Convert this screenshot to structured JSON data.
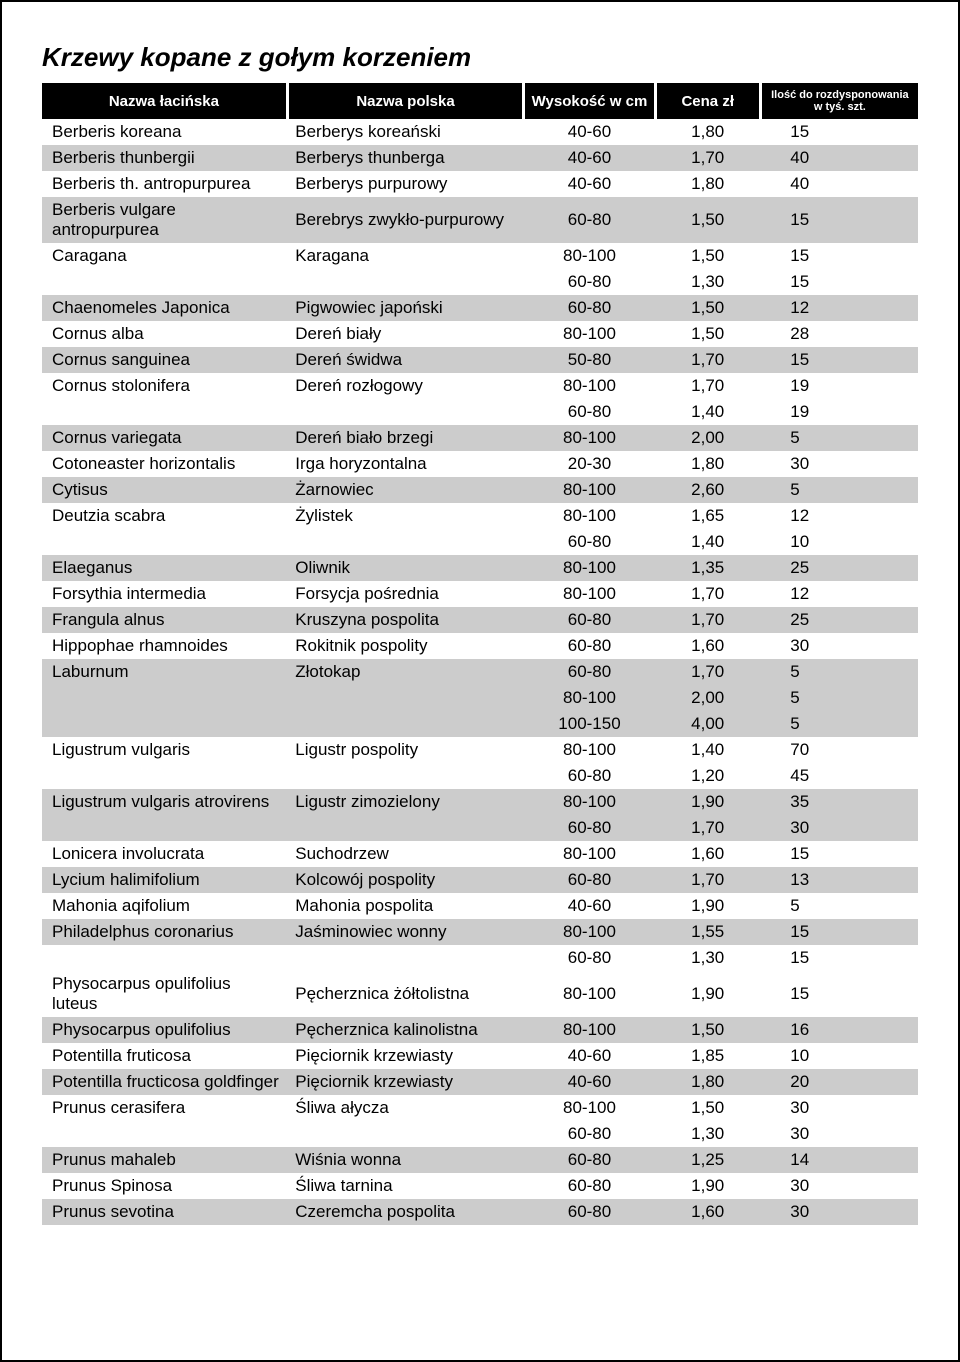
{
  "title": "Krzewy kopane z gołym korzeniem",
  "headers": {
    "latin": "Nazwa łacińska",
    "polish": "Nazwa polska",
    "height": "Wysokość w cm",
    "price": "Cena zł",
    "qty_line1": "Ilość do rozdysponowania",
    "qty_line2": "w tyś. szt."
  },
  "rows": [
    {
      "latin": "Berberis koreana",
      "polish": "Berberys koreański",
      "height": "40-60",
      "price": "1,80",
      "qty": "15",
      "shade": "white"
    },
    {
      "latin": "Berberis thunbergii",
      "polish": "Berberys thunberga",
      "height": "40-60",
      "price": "1,70",
      "qty": "40",
      "shade": "shaded"
    },
    {
      "latin": "Berberis th. antropurpurea",
      "polish": "Berberys purpurowy",
      "height": "40-60",
      "price": "1,80",
      "qty": "40",
      "shade": "white"
    },
    {
      "latin": "Berberis vulgare antropurpurea",
      "polish": "Berebrys zwykło-purpurowy",
      "height": "60-80",
      "price": "1,50",
      "qty": "15",
      "shade": "shaded"
    },
    {
      "latin": "Caragana",
      "polish": "Karagana",
      "height": "80-100",
      "price": "1,50",
      "qty": "15",
      "shade": "white"
    },
    {
      "latin": "",
      "polish": "",
      "height": "60-80",
      "price": "1,30",
      "qty": "15",
      "shade": "white"
    },
    {
      "latin": "Chaenomeles Japonica",
      "polish": "Pigwowiec japoński",
      "height": "60-80",
      "price": "1,50",
      "qty": "12",
      "shade": "shaded"
    },
    {
      "latin": "Cornus alba",
      "polish": "Dereń biały",
      "height": "80-100",
      "price": "1,50",
      "qty": "28",
      "shade": "white"
    },
    {
      "latin": "Cornus sanguinea",
      "polish": "Dereń świdwa",
      "height": "50-80",
      "price": "1,70",
      "qty": "15",
      "shade": "shaded"
    },
    {
      "latin": "Cornus stolonifera",
      "polish": "Dereń rozłogowy",
      "height": "80-100",
      "price": "1,70",
      "qty": "19",
      "shade": "white"
    },
    {
      "latin": "",
      "polish": "",
      "height": "60-80",
      "price": "1,40",
      "qty": "19",
      "shade": "white"
    },
    {
      "latin": "Cornus variegata",
      "polish": "Dereń biało brzegi",
      "height": "80-100",
      "price": "2,00",
      "qty": "5",
      "shade": "shaded"
    },
    {
      "latin": "Cotoneaster horizontalis",
      "polish": "Irga horyzontalna",
      "height": "20-30",
      "price": "1,80",
      "qty": "30",
      "shade": "white"
    },
    {
      "latin": "Cytisus",
      "polish": "Żarnowiec",
      "height": "80-100",
      "price": "2,60",
      "qty": "5",
      "shade": "shaded"
    },
    {
      "latin": "Deutzia scabra",
      "polish": "Żylistek",
      "height": "80-100",
      "price": "1,65",
      "qty": "12",
      "shade": "white"
    },
    {
      "latin": "",
      "polish": "",
      "height": "60-80",
      "price": "1,40",
      "qty": "10",
      "shade": "white"
    },
    {
      "latin": "Elaeganus",
      "polish": "Oliwnik",
      "height": "80-100",
      "price": "1,35",
      "qty": "25",
      "shade": "shaded"
    },
    {
      "latin": "Forsythia intermedia",
      "polish": "Forsycja pośrednia",
      "height": "80-100",
      "price": "1,70",
      "qty": "12",
      "shade": "white"
    },
    {
      "latin": "Frangula alnus",
      "polish": "Kruszyna pospolita",
      "height": "60-80",
      "price": "1,70",
      "qty": "25",
      "shade": "shaded"
    },
    {
      "latin": "Hippophae rhamnoides",
      "polish": "Rokitnik pospolity",
      "height": "60-80",
      "price": "1,60",
      "qty": "30",
      "shade": "white"
    },
    {
      "latin": "Laburnum",
      "polish": "Złotokap",
      "height": "60-80",
      "price": "1,70",
      "qty": "5",
      "shade": "shaded"
    },
    {
      "latin": "",
      "polish": "",
      "height": "80-100",
      "price": "2,00",
      "qty": "5",
      "shade": "shaded"
    },
    {
      "latin": "",
      "polish": "",
      "height": "100-150",
      "price": "4,00",
      "qty": "5",
      "shade": "shaded"
    },
    {
      "latin": "Ligustrum vulgaris",
      "polish": "Ligustr pospolity",
      "height": "80-100",
      "price": "1,40",
      "qty": "70",
      "shade": "white"
    },
    {
      "latin": "",
      "polish": "",
      "height": "60-80",
      "price": "1,20",
      "qty": "45",
      "shade": "white"
    },
    {
      "latin": "Ligustrum vulgaris atrovirens",
      "polish": "Ligustr zimozielony",
      "height": "80-100",
      "price": "1,90",
      "qty": "35",
      "shade": "shaded"
    },
    {
      "latin": "",
      "polish": "",
      "height": "60-80",
      "price": "1,70",
      "qty": "30",
      "shade": "shaded"
    },
    {
      "latin": "Lonicera involucrata",
      "polish": "Suchodrzew",
      "height": "80-100",
      "price": "1,60",
      "qty": "15",
      "shade": "white"
    },
    {
      "latin": "Lycium halimifolium",
      "polish": "Kolcowój pospolity",
      "height": "60-80",
      "price": "1,70",
      "qty": "13",
      "shade": "shaded"
    },
    {
      "latin": "Mahonia aqifolium",
      "polish": "Mahonia pospolita",
      "height": "40-60",
      "price": "1,90",
      "qty": "5",
      "shade": "white"
    },
    {
      "latin": "Philadelphus coronarius",
      "polish": "Jaśminowiec wonny",
      "height": "80-100",
      "price": "1,55",
      "qty": "15",
      "shade": "shaded"
    },
    {
      "latin": "",
      "polish": "",
      "height": "60-80",
      "price": "1,30",
      "qty": "15",
      "shade": "white"
    },
    {
      "latin": "Physocarpus opulifolius luteus",
      "polish": "Pęcherznica żółtolistna",
      "height": "80-100",
      "price": "1,90",
      "qty": "15",
      "shade": "white"
    },
    {
      "latin": "Physocarpus opulifolius",
      "polish": "Pęcherznica kalinolistna",
      "height": "80-100",
      "price": "1,50",
      "qty": "16",
      "shade": "shaded"
    },
    {
      "latin": "Potentilla fruticosa",
      "polish": "Pięciornik krzewiasty",
      "height": "40-60",
      "price": "1,85",
      "qty": "10",
      "shade": "white"
    },
    {
      "latin": "Potentilla fructicosa goldfinger",
      "polish": "Pięciornik krzewiasty",
      "height": "40-60",
      "price": "1,80",
      "qty": "20",
      "shade": "shaded"
    },
    {
      "latin": "Prunus cerasifera",
      "polish": "Śliwa ałycza",
      "height": "80-100",
      "price": "1,50",
      "qty": "30",
      "shade": "white"
    },
    {
      "latin": "",
      "polish": "",
      "height": "60-80",
      "price": "1,30",
      "qty": "30",
      "shade": "white"
    },
    {
      "latin": "Prunus mahaleb",
      "polish": "Wiśnia wonna",
      "height": "60-80",
      "price": "1,25",
      "qty": "14",
      "shade": "shaded"
    },
    {
      "latin": "Prunus Spinosa",
      "polish": "Śliwa tarnina",
      "height": "60-80",
      "price": "1,90",
      "qty": "30",
      "shade": "white"
    },
    {
      "latin": "Prunus sevotina",
      "polish": "Czeremcha pospolita",
      "height": "60-80",
      "price": "1,60",
      "qty": "30",
      "shade": "shaded"
    }
  ]
}
